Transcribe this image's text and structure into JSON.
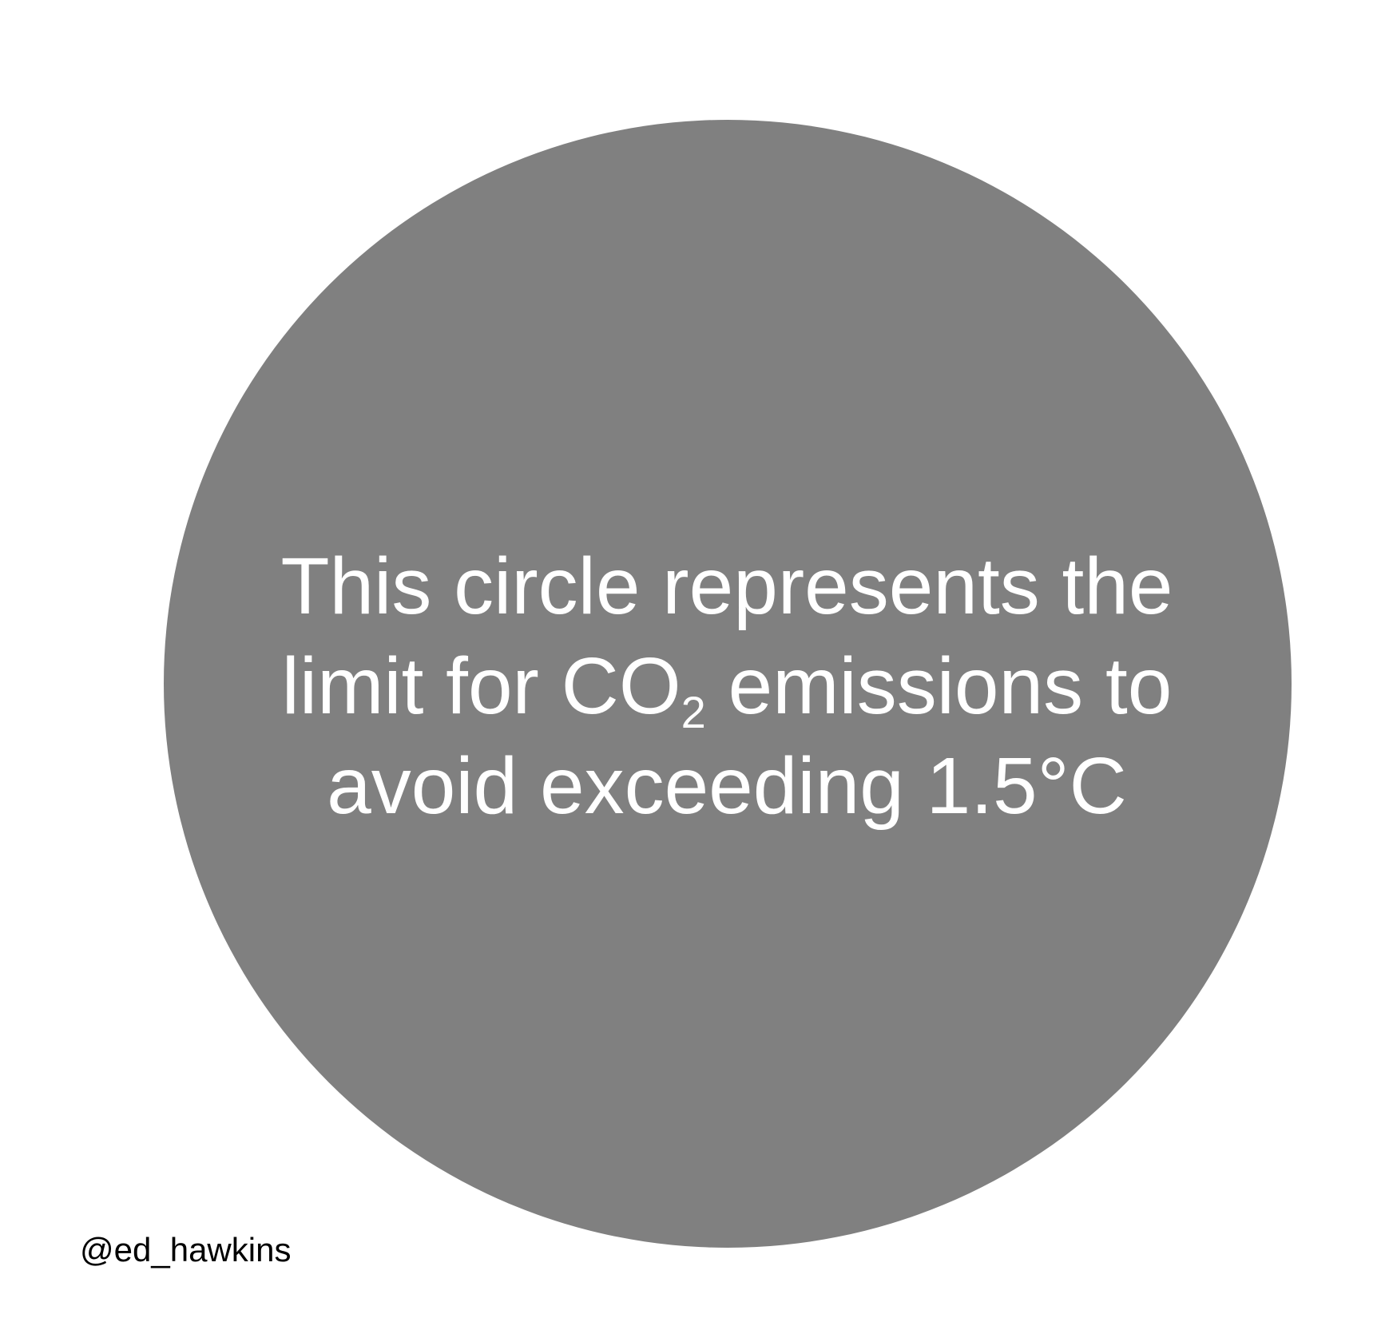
{
  "colors": {
    "background": "#ffffff",
    "circle_fill": "#808080",
    "caption_text": "#ffffff",
    "attribution_text": "#000000"
  },
  "caption": {
    "line1": "This circle represents the",
    "line2_before": "limit for CO",
    "line2_subscript": "2",
    "line2_after": " emissions to",
    "line3": "avoid exceeding 1.5°C"
  },
  "attribution": "@ed_hawkins"
}
